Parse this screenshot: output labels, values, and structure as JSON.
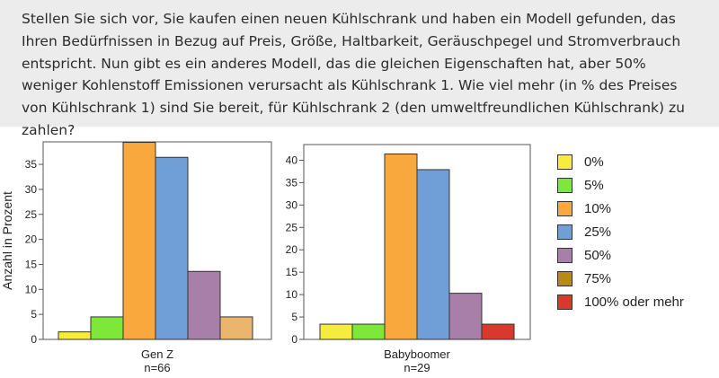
{
  "question": "Stellen Sie sich vor, Sie kaufen einen neuen Kühlschrank und haben ein Modell gefunden, das Ihren Bedürfnissen in Bezug auf Preis, Größe, Haltbarkeit, Geräuschpegel und Stromverbrauch entspricht. Nun gibt es ein anderes Modell, das die gleichen Eigenschaften hat, aber 50% weniger Kohlenstoff Emissionen verursacht als Kühlschrank 1. Wie viel mehr (in % des Preises von Kühlschrank 1) sind Sie bereit, für Kühlschrank 2 (den umweltfreundlichen Kühlschrank) zu zahlen?",
  "legend": [
    {
      "label": "0%",
      "color": "#f5ec3f"
    },
    {
      "label": "5%",
      "color": "#7de83a"
    },
    {
      "label": "10%",
      "color": "#f9a83e"
    },
    {
      "label": "25%",
      "color": "#6f9fd6"
    },
    {
      "label": "50%",
      "color": "#a77fa9"
    },
    {
      "label": "75%",
      "color": "#b58b12"
    },
    {
      "label": "100% oder mehr",
      "color": "#d9392c"
    }
  ],
  "chart_data": [
    {
      "type": "bar",
      "ylabel": "Anzahl in Prozent",
      "group_label": "Gen Z",
      "n_label": "n=66",
      "ylim": [
        0,
        39.5
      ],
      "yticks": [
        0,
        5,
        10,
        15,
        20,
        25,
        30,
        35
      ],
      "categories": [
        "0%",
        "5%",
        "10%",
        "25%",
        "50%",
        "100% oder mehr"
      ],
      "values": [
        1.5,
        4.5,
        39.4,
        36.4,
        13.6,
        4.5
      ],
      "colors": [
        "#f5ec3f",
        "#7de83a",
        "#f9a83e",
        "#6f9fd6",
        "#a77fa9",
        "#ecb56e"
      ]
    },
    {
      "type": "bar",
      "ylabel": "",
      "group_label": "Babyboomer",
      "n_label": "n=29",
      "ylim": [
        0,
        43.5
      ],
      "yticks": [
        0,
        5,
        10,
        15,
        20,
        25,
        30,
        35,
        40
      ],
      "categories": [
        "0%",
        "5%",
        "10%",
        "25%",
        "50%",
        "100% oder mehr"
      ],
      "values": [
        3.4,
        3.4,
        41.4,
        37.9,
        10.3,
        3.4
      ],
      "colors": [
        "#f5ec3f",
        "#7de83a",
        "#f9a83e",
        "#6f9fd6",
        "#a77fa9",
        "#d9392c"
      ]
    }
  ]
}
